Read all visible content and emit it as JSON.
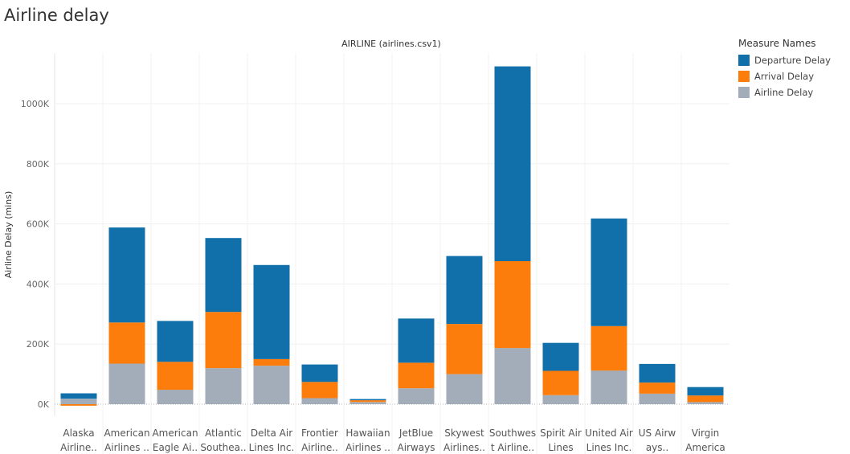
{
  "page": {
    "title": "Airline delay"
  },
  "legend": {
    "title": "Measure Names",
    "items": [
      {
        "label": "Departure Delay",
        "color": "#1170aa"
      },
      {
        "label": "Arrival Delay",
        "color": "#fc7d0b"
      },
      {
        "label": "Airline Delay",
        "color": "#a3acb9"
      }
    ]
  },
  "chart_data": {
    "type": "bar",
    "stacked": true,
    "title": "AIRLINE (airlines.csv1)",
    "ylabel": "Airline Delay (mins)",
    "xlabel": "",
    "ylim": [
      -10000,
      1165000
    ],
    "yticks": [
      0,
      200000,
      400000,
      600000,
      800000,
      1000000
    ],
    "ytick_labels": [
      "0K",
      "200K",
      "400K",
      "600K",
      "800K",
      "1000K"
    ],
    "grid": true,
    "legend_position": "top-right",
    "categories": [
      [
        "Alaska",
        "Airline.."
      ],
      [
        "American",
        "Airlines .."
      ],
      [
        "American",
        "Eagle Ai.."
      ],
      [
        "Atlantic",
        "Southea.."
      ],
      [
        "Delta Air",
        "Lines Inc."
      ],
      [
        "Frontier",
        "Airline.."
      ],
      [
        "Hawaiian",
        "Airlines .."
      ],
      [
        "JetBlue",
        "Airways"
      ],
      [
        "Skywest",
        "Airlines.."
      ],
      [
        "Southwes",
        "t Airline.."
      ],
      [
        "Spirit Air",
        "Lines"
      ],
      [
        "United Air",
        "Lines Inc."
      ],
      [
        "US Airw",
        "ays.."
      ],
      [
        "Virgin",
        "America"
      ]
    ],
    "series": [
      {
        "name": "Airline Delay",
        "color": "#a3acb9",
        "values": [
          18000,
          135000,
          48000,
          120000,
          128000,
          20000,
          7000,
          53000,
          100000,
          187000,
          30000,
          112000,
          35000,
          7000
        ]
      },
      {
        "name": "Arrival Delay",
        "color": "#fc7d0b",
        "values": [
          -5000,
          137000,
          93000,
          187000,
          22000,
          54000,
          6000,
          85000,
          167000,
          289000,
          81000,
          148000,
          37000,
          22000
        ]
      },
      {
        "name": "Departure Delay",
        "color": "#1170aa",
        "values": [
          18000,
          316000,
          136000,
          246000,
          313000,
          58000,
          4000,
          147000,
          226000,
          648000,
          93000,
          358000,
          62000,
          28000
        ]
      }
    ]
  }
}
